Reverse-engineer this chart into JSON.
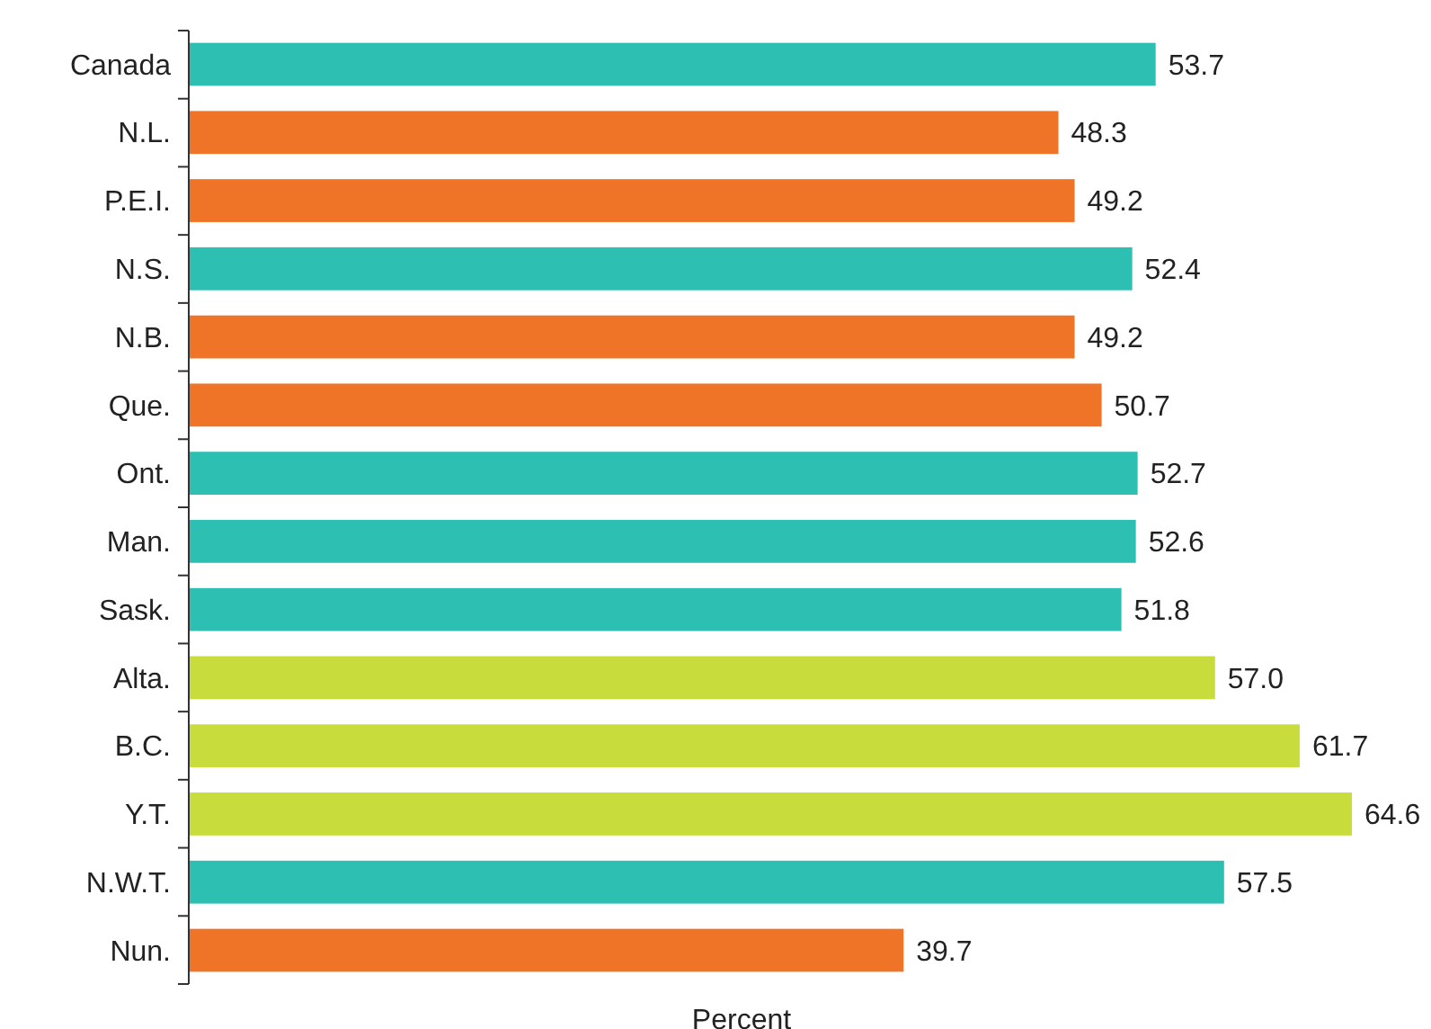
{
  "chart_data": {
    "type": "bar",
    "orientation": "horizontal",
    "xlabel": "Percent",
    "categories": [
      "Canada",
      "N.L.",
      "P.E.I.",
      "N.S.",
      "N.B.",
      "Que.",
      "Ont.",
      "Man.",
      "Sask.",
      "Alta.",
      "B.C.",
      "Y.T.",
      "N.W.T.",
      "Nun."
    ],
    "values": [
      53.7,
      48.3,
      49.2,
      52.4,
      49.2,
      50.7,
      52.7,
      52.6,
      51.8,
      57.0,
      61.7,
      64.6,
      57.5,
      39.7
    ],
    "colors": [
      "#2ebfb3",
      "#f07427",
      "#f07427",
      "#2ebfb3",
      "#f07427",
      "#f07427",
      "#2ebfb3",
      "#2ebfb3",
      "#2ebfb3",
      "#c8dc3c",
      "#c8dc3c",
      "#c8dc3c",
      "#2ebfb3",
      "#f07427"
    ],
    "value_labels": [
      "53.7",
      "48.3",
      "49.2",
      "52.4",
      "49.2",
      "50.7",
      "52.7",
      "52.6",
      "51.8",
      "57.0",
      "61.7",
      "64.6",
      "57.5",
      "39.7"
    ]
  }
}
